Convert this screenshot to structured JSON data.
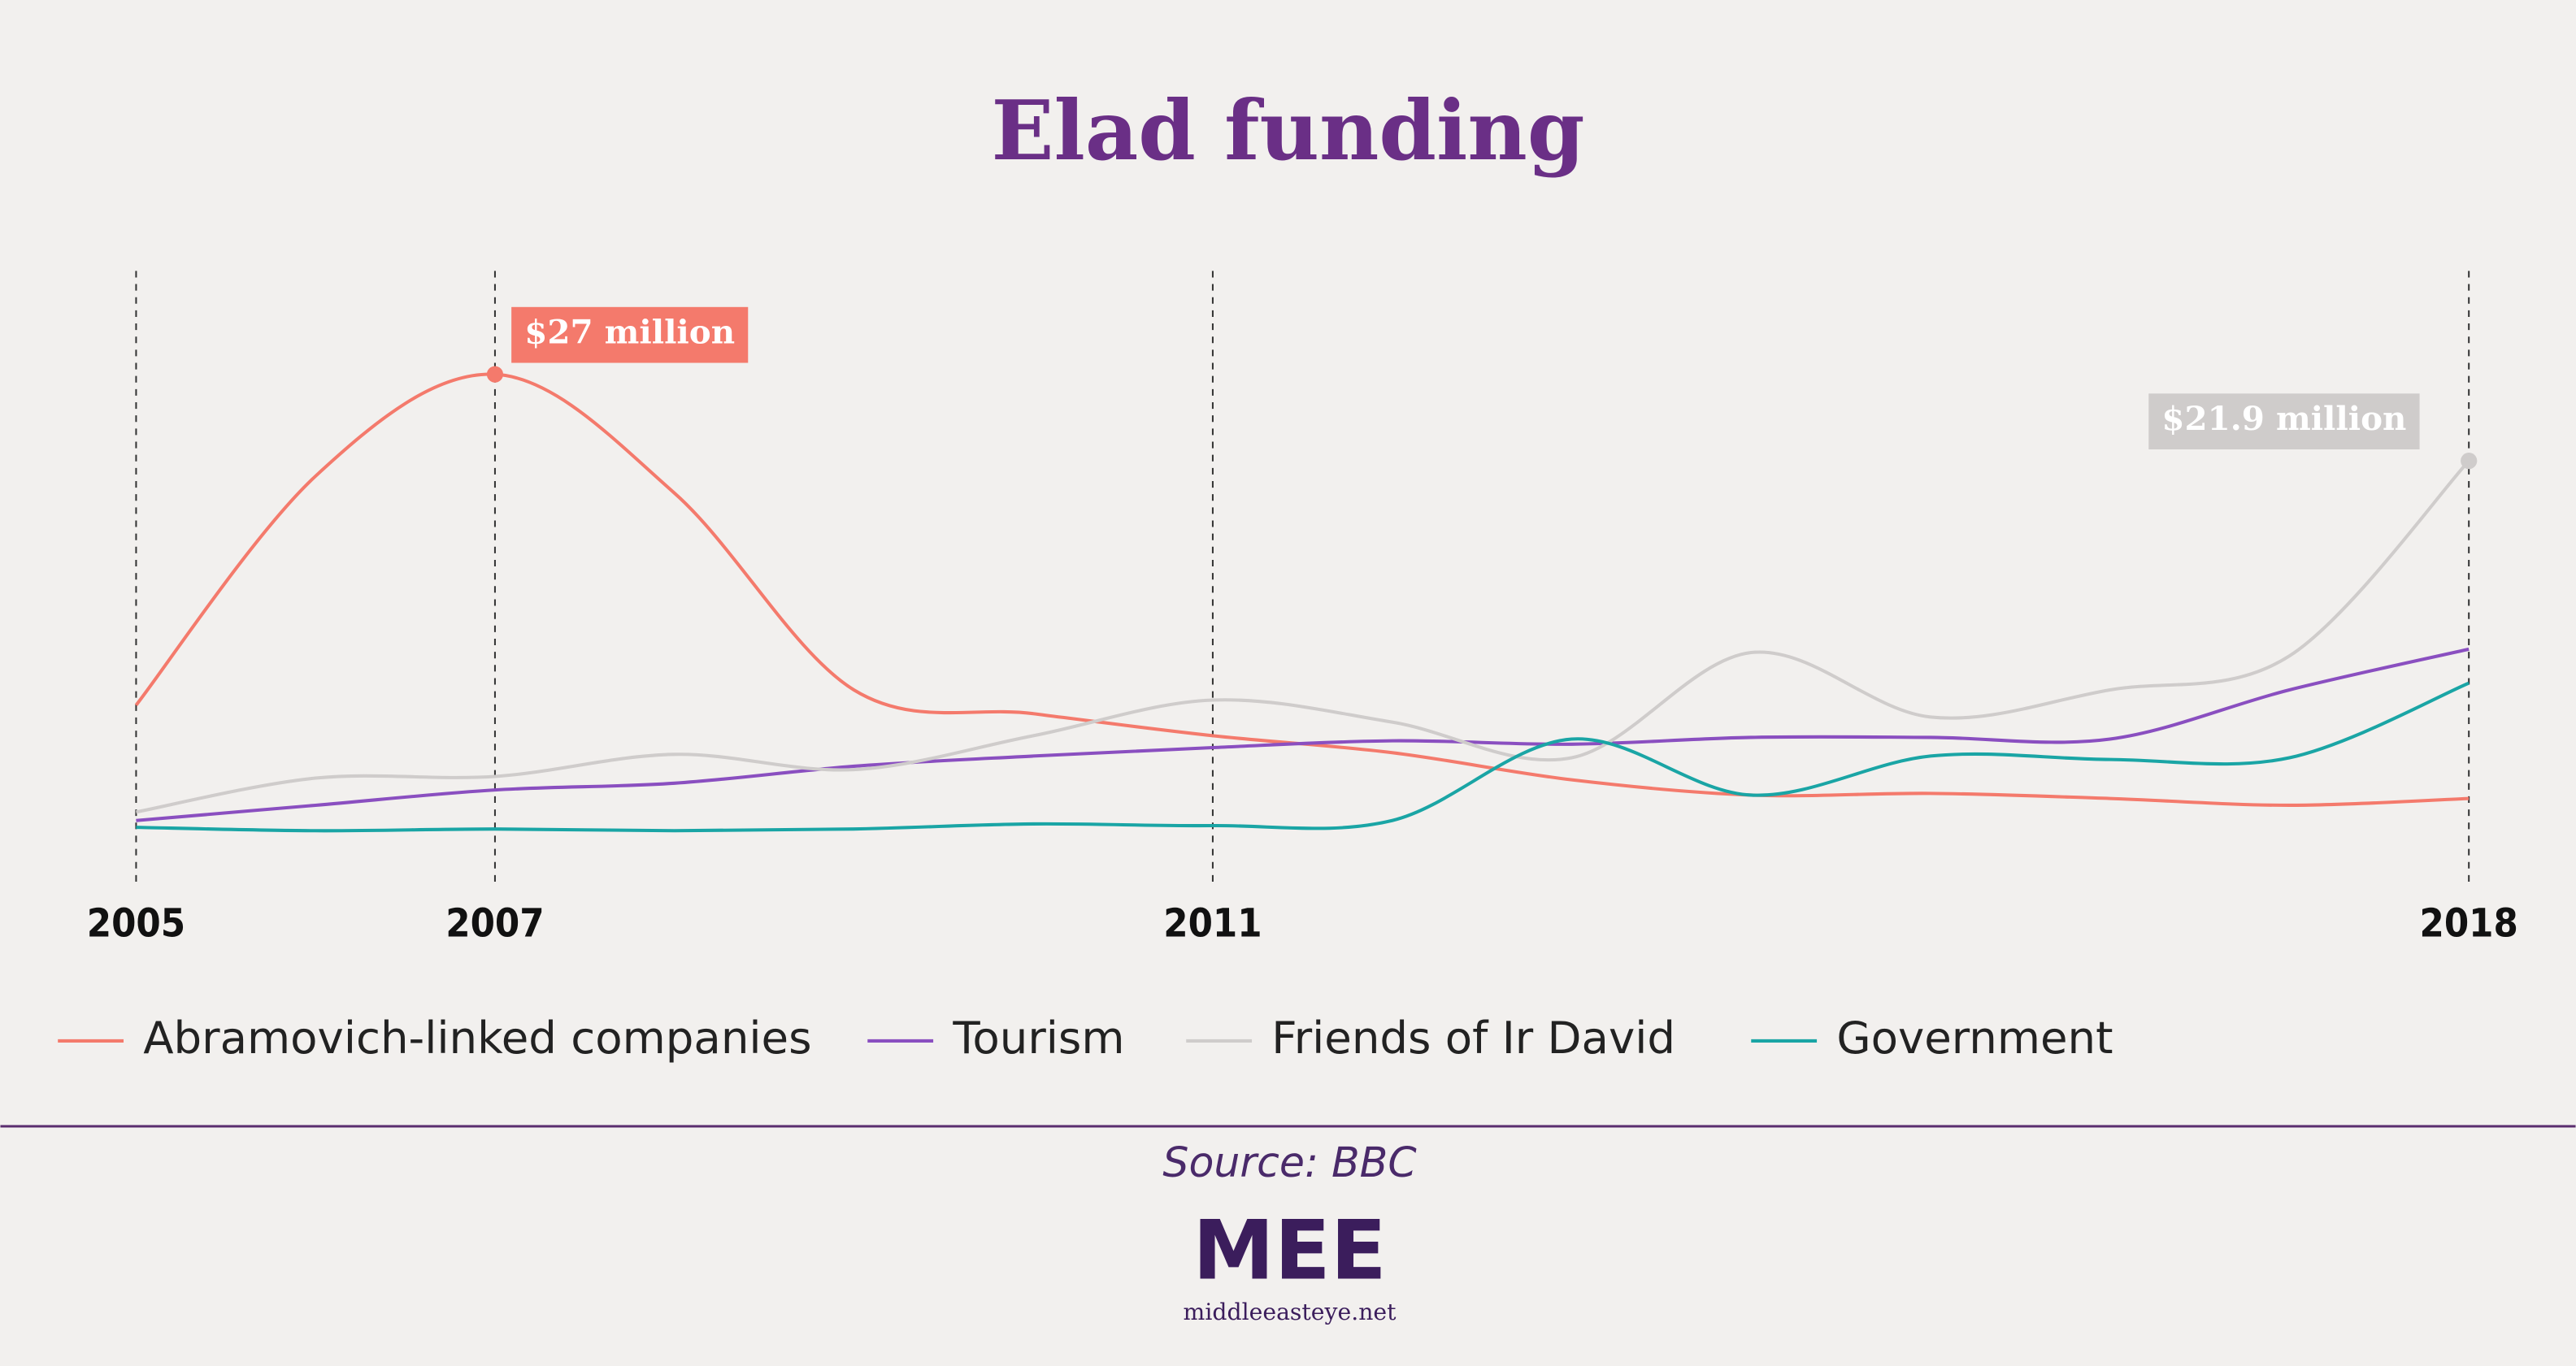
{
  "chart_data": {
    "type": "line",
    "title": "Elad funding",
    "x": [
      2005,
      2006,
      2007,
      2008,
      2009,
      2010,
      2011,
      2012,
      2013,
      2014,
      2015,
      2016,
      2017,
      2018
    ],
    "xlim": [
      2004.5,
      2018
    ],
    "xticks": [
      2005,
      2007,
      2011,
      2018
    ],
    "ylim": [
      0,
      30
    ],
    "series": [
      {
        "name": "Abramovich-linked companies",
        "color": "#f47a6c",
        "values": [
          7.5,
          21,
          27,
          20,
          8.4,
          7,
          5.7,
          4.7,
          3.1,
          2.2,
          2.3,
          2,
          1.6,
          2
        ],
        "value_labels": [
          null,
          null,
          "$27 million",
          null,
          null,
          null,
          null,
          null,
          null,
          null,
          null,
          null,
          null,
          null
        ]
      },
      {
        "name": "Tourism",
        "color": "#8a4fc0",
        "values": [
          0.7,
          1.6,
          2.5,
          2.9,
          3.9,
          4.5,
          5,
          5.4,
          5.2,
          5.6,
          5.6,
          5.5,
          8.4,
          10.8
        ]
      },
      {
        "name": "Friends of Ir David",
        "color": "#cfcccb",
        "values": [
          1.2,
          3.2,
          3.3,
          4.6,
          3.7,
          5.7,
          7.8,
          6.5,
          4.4,
          10.6,
          6.8,
          8.4,
          10.4,
          21.9
        ],
        "value_labels": [
          null,
          null,
          null,
          null,
          null,
          null,
          null,
          null,
          null,
          null,
          null,
          null,
          null,
          "$21.9 million"
        ]
      },
      {
        "name": "Government",
        "color": "#1aa5a5",
        "values": [
          0.3,
          0.1,
          0.2,
          0.1,
          0.2,
          0.5,
          0.4,
          0.7,
          5.5,
          2.2,
          4.5,
          4.3,
          4.4,
          8.8
        ]
      }
    ]
  },
  "footer": {
    "source": "Source: BBC",
    "logo": "MEE",
    "site": "middleeasteye.net"
  }
}
